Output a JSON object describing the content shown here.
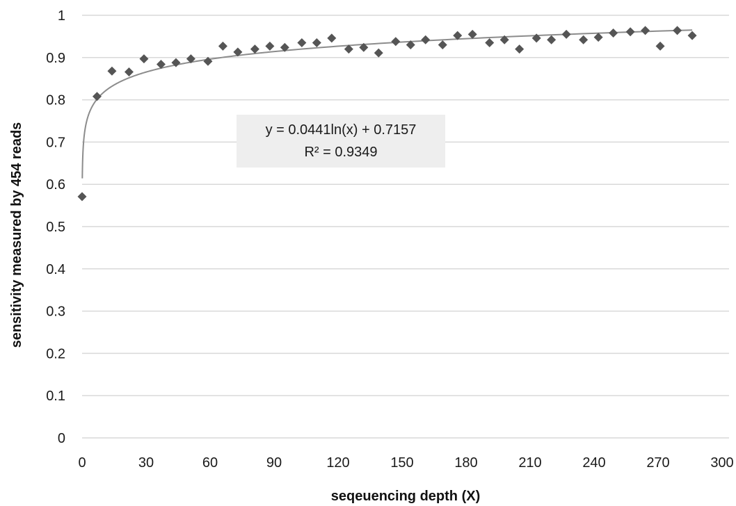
{
  "chart_data": {
    "type": "scatter",
    "xlabel": "seqeuencing depth (X)",
    "ylabel": "sensitivity measured by 454 reads",
    "xlim": [
      0,
      300
    ],
    "ylim": [
      0,
      1
    ],
    "x_ticks": [
      "0",
      "30",
      "60",
      "90",
      "120",
      "150",
      "180",
      "210",
      "240",
      "270",
      "300"
    ],
    "y_ticks": [
      "0",
      "0.1",
      "0.2",
      "0.3",
      "0.4",
      "0.5",
      "0.6",
      "0.7",
      "0.8",
      "0.9",
      "1"
    ],
    "grid": "horizontal",
    "marker": "diamond",
    "colors": {
      "points": "#555555",
      "trendline": "#8c8c8c",
      "grid": "#d9d9d9",
      "label_bg": "#eeeeee"
    },
    "points": [
      {
        "x": 0,
        "y": 0.571
      },
      {
        "x": 7,
        "y": 0.808
      },
      {
        "x": 14,
        "y": 0.868
      },
      {
        "x": 22,
        "y": 0.866
      },
      {
        "x": 29,
        "y": 0.897
      },
      {
        "x": 37,
        "y": 0.884
      },
      {
        "x": 44,
        "y": 0.888
      },
      {
        "x": 51,
        "y": 0.897
      },
      {
        "x": 59,
        "y": 0.891
      },
      {
        "x": 66,
        "y": 0.927
      },
      {
        "x": 73,
        "y": 0.913
      },
      {
        "x": 81,
        "y": 0.92
      },
      {
        "x": 88,
        "y": 0.927
      },
      {
        "x": 95,
        "y": 0.924
      },
      {
        "x": 103,
        "y": 0.935
      },
      {
        "x": 110,
        "y": 0.935
      },
      {
        "x": 117,
        "y": 0.946
      },
      {
        "x": 125,
        "y": 0.92
      },
      {
        "x": 132,
        "y": 0.924
      },
      {
        "x": 139,
        "y": 0.911
      },
      {
        "x": 147,
        "y": 0.938
      },
      {
        "x": 154,
        "y": 0.93
      },
      {
        "x": 161,
        "y": 0.942
      },
      {
        "x": 169,
        "y": 0.93
      },
      {
        "x": 176,
        "y": 0.952
      },
      {
        "x": 183,
        "y": 0.955
      },
      {
        "x": 191,
        "y": 0.935
      },
      {
        "x": 198,
        "y": 0.942
      },
      {
        "x": 205,
        "y": 0.92
      },
      {
        "x": 213,
        "y": 0.946
      },
      {
        "x": 220,
        "y": 0.942
      },
      {
        "x": 227,
        "y": 0.955
      },
      {
        "x": 235,
        "y": 0.942
      },
      {
        "x": 242,
        "y": 0.948
      },
      {
        "x": 249,
        "y": 0.958
      },
      {
        "x": 257,
        "y": 0.961
      },
      {
        "x": 264,
        "y": 0.964
      },
      {
        "x": 271,
        "y": 0.927
      },
      {
        "x": 279,
        "y": 0.964
      },
      {
        "x": 286,
        "y": 0.952
      }
    ],
    "trendline": {
      "type": "logarithmic",
      "a": 0.0441,
      "b": 0.7157,
      "equation": "y = 0.0441ln(x) + 0.7157",
      "r_squared": "R² = 0.9349"
    }
  }
}
